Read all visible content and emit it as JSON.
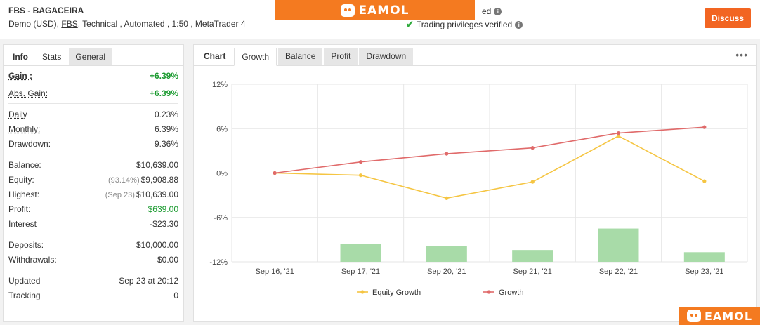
{
  "header": {
    "title": "FBS - BAGACEIRA",
    "subtitle_pre": "Demo (USD),",
    "subtitle_broker": "FBS",
    "subtitle_post": ", Technical , Automated , 1:50 , MetaTrader 4",
    "status1": "ed",
    "status2": "Trading privileges verified",
    "discuss_label": "Discuss",
    "accent": "#f26522"
  },
  "watermark": {
    "text": "EAMOL",
    "color": "#f47a20"
  },
  "left_tabs": [
    "Info",
    "Stats",
    "General"
  ],
  "stats": {
    "gain": {
      "label": "Gain :",
      "value": "+6.39%"
    },
    "abs_gain": {
      "label": "Abs. Gain:",
      "value": "+6.39%"
    },
    "daily": {
      "label": "Daily",
      "value": "0.23%"
    },
    "monthly": {
      "label": "Monthly:",
      "value": "6.39%"
    },
    "drawdown": {
      "label": "Drawdown:",
      "value": "9.36%"
    },
    "balance": {
      "label": "Balance:",
      "value": "$10,639.00"
    },
    "equity": {
      "label": "Equity:",
      "prefix": "(93.14%)",
      "value": "$9,908.88"
    },
    "highest": {
      "label": "Highest:",
      "prefix": "(Sep 23)",
      "value": "$10,639.00"
    },
    "profit": {
      "label": "Profit:",
      "value": "$639.00"
    },
    "interest": {
      "label": "Interest",
      "value": "-$23.30"
    },
    "deposits": {
      "label": "Deposits:",
      "value": "$10,000.00"
    },
    "withdrawals": {
      "label": "Withdrawals:",
      "value": "$0.00"
    },
    "updated": {
      "label": "Updated",
      "value": "Sep 23 at 20:12"
    },
    "tracking": {
      "label": "Tracking",
      "value": "0"
    }
  },
  "right_tabs": [
    "Chart",
    "Growth",
    "Balance",
    "Profit",
    "Drawdown"
  ],
  "chart_data": {
    "type": "line",
    "categories": [
      "Sep 16, '21",
      "Sep 17, '21",
      "Sep 20, '21",
      "Sep 21, '21",
      "Sep 22, '21",
      "Sep 23, '21"
    ],
    "yticks": [
      "12%",
      "6%",
      "0%",
      "-6%",
      "-12%"
    ],
    "ylim": [
      -12,
      12
    ],
    "grid": true,
    "legend_position": "bottom",
    "series": [
      {
        "name": "Equity Growth",
        "type": "line",
        "color": "#f5c542",
        "values": [
          0,
          -0.3,
          -3.4,
          -1.2,
          5.0,
          -1.1
        ]
      },
      {
        "name": "Growth",
        "type": "line",
        "color": "#e06a6a",
        "values": [
          0,
          1.5,
          2.6,
          3.4,
          5.4,
          6.2
        ]
      },
      {
        "type": "bar",
        "color": "#a8dba8",
        "values": [
          null,
          -9.6,
          -9.9,
          -10.4,
          -7.5,
          -10.7
        ]
      }
    ]
  }
}
